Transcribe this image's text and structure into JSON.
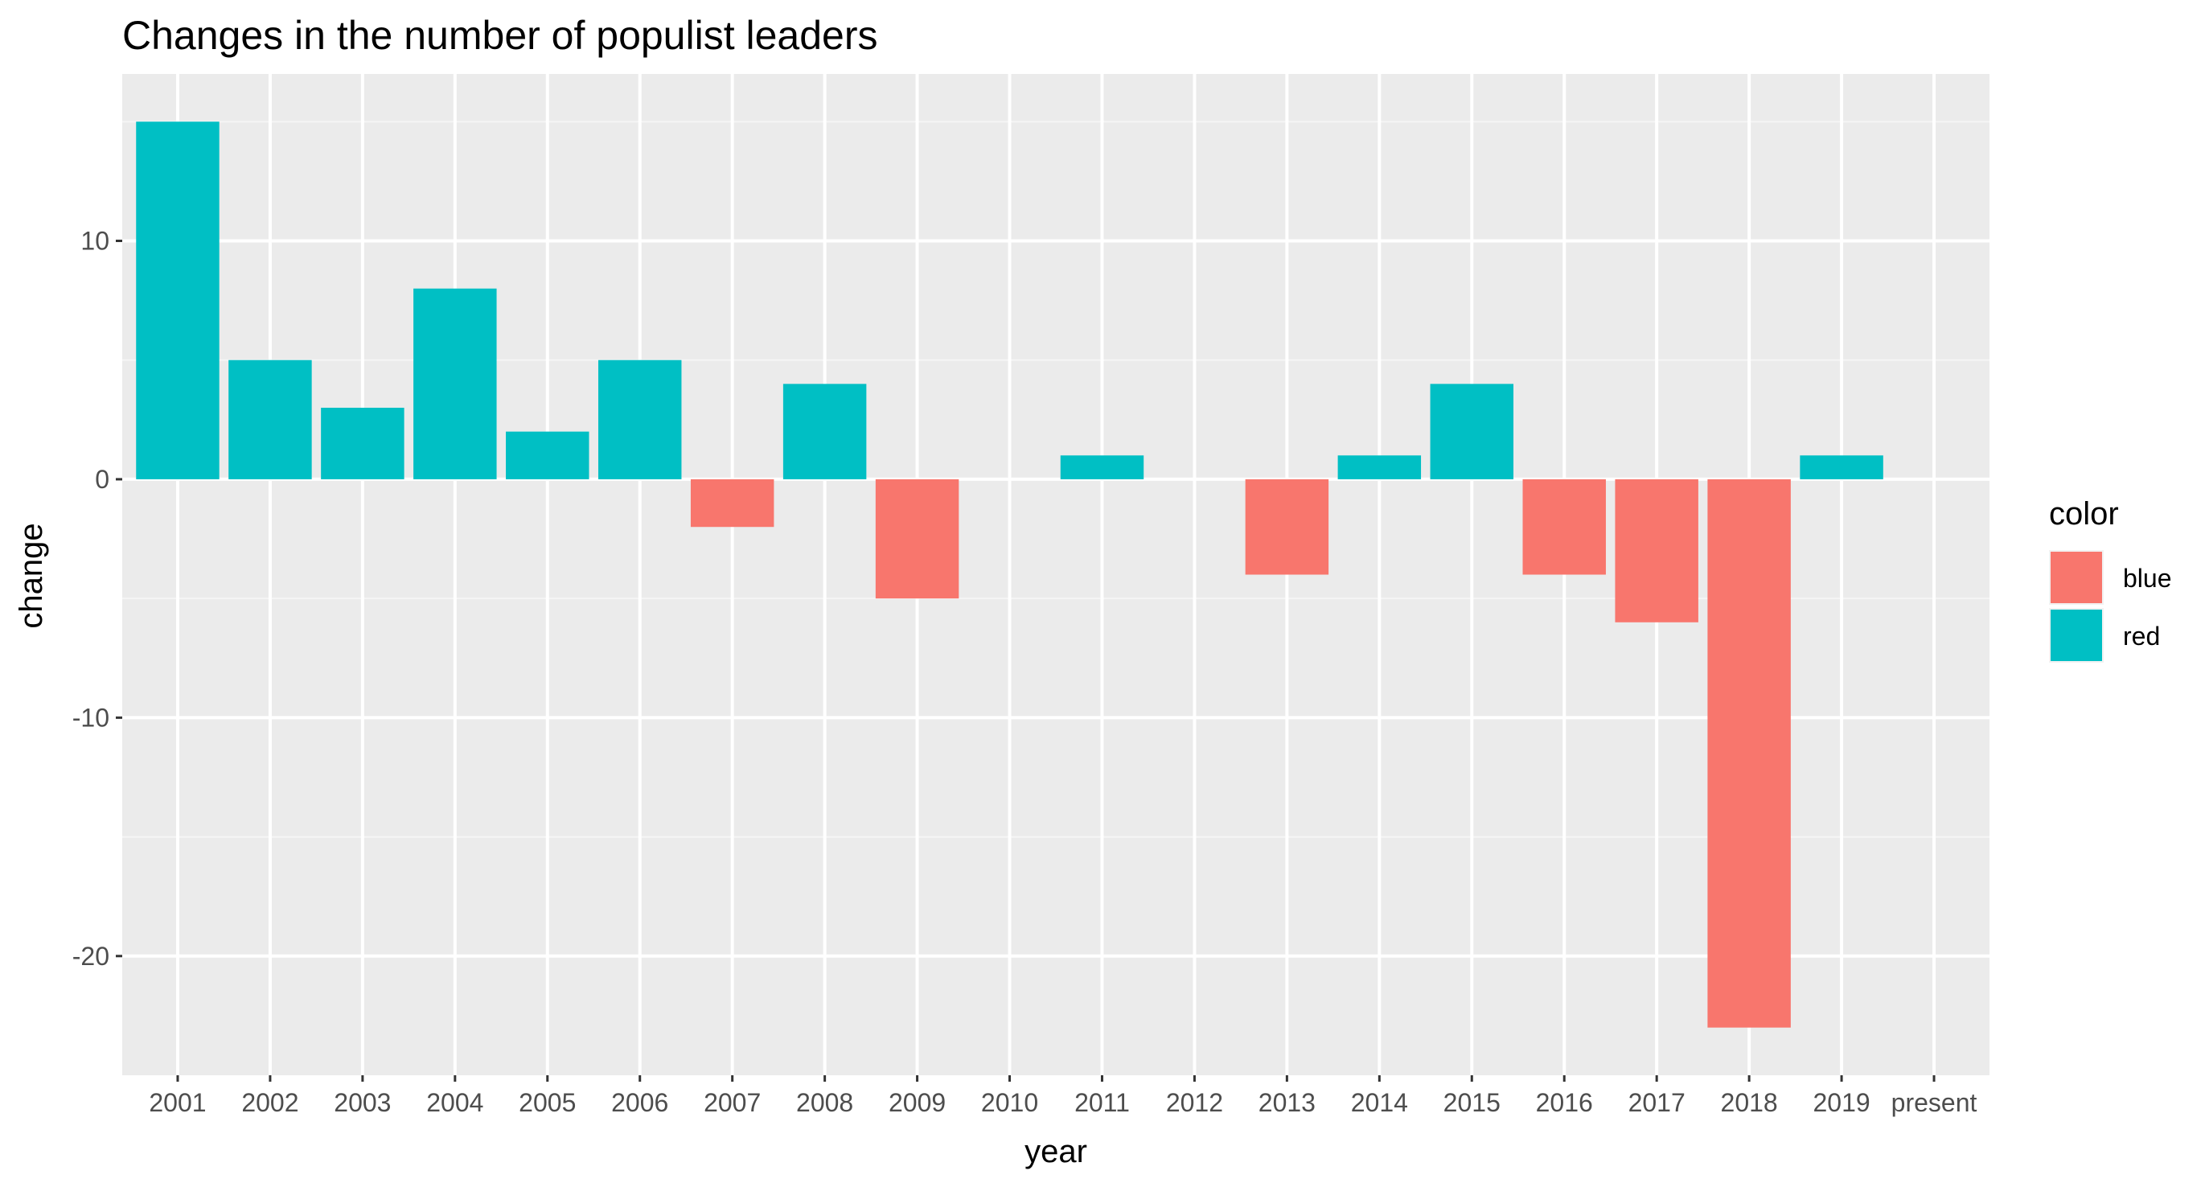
{
  "chart_data": {
    "type": "bar",
    "title": "Changes in the number of populist leaders",
    "xlabel": "year",
    "ylabel": "change",
    "categories": [
      "2001",
      "2002",
      "2003",
      "2004",
      "2005",
      "2006",
      "2007",
      "2008",
      "2009",
      "2010",
      "2011",
      "2012",
      "2013",
      "2014",
      "2015",
      "2016",
      "2017",
      "2018",
      "2019",
      "present"
    ],
    "values": [
      15,
      5,
      3,
      8,
      2,
      5,
      -2,
      4,
      -5,
      null,
      1,
      null,
      -4,
      1,
      4,
      -4,
      -6,
      -23,
      1,
      null
    ],
    "color_groups": [
      "red",
      "red",
      "red",
      "red",
      "red",
      "red",
      "blue",
      "red",
      "blue",
      null,
      "red",
      null,
      "blue",
      "red",
      "red",
      "blue",
      "blue",
      "blue",
      "red",
      null
    ],
    "ylim": [
      -25,
      17
    ],
    "yticks": [
      10,
      0,
      -10,
      -20
    ],
    "grid": true,
    "legend": {
      "title": "color",
      "position": "right",
      "entries": [
        {
          "label": "blue",
          "color": "#F8766D"
        },
        {
          "label": "red",
          "color": "#00BFC4"
        }
      ]
    },
    "colors": {
      "panel_background": "#EBEBEB",
      "grid_major": "#FFFFFF",
      "grid_minor": "#F5F5F5",
      "tick_text": "#4D4D4D",
      "tick_mark": "#333333"
    }
  }
}
